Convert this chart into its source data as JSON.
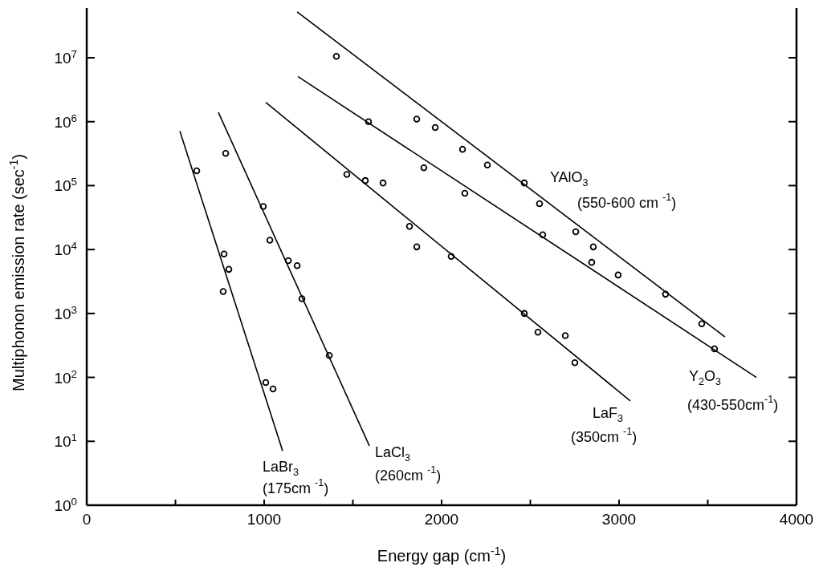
{
  "chart_data": {
    "type": "scatter",
    "xlabel": "Energy gap (cm$^{-1}$)",
    "ylabel": "Multiphonon emission rate (sec$^{-1}$)",
    "log": "y",
    "marker": "circle",
    "xlim": [
      0,
      4000
    ],
    "xticks": [
      0,
      {
        "value": 500,
        "label": null
      },
      1000,
      {
        "value": 1500,
        "label": null
      },
      2000,
      {
        "value": 2500,
        "label": null
      },
      3000,
      {
        "value": 3500,
        "label": null
      },
      4000
    ],
    "ylim": [
      1,
      60000000
    ],
    "yticks": [
      {
        "value": 1,
        "label": "10$^{0}$"
      },
      {
        "value": 10,
        "label": "10$^{1}$"
      },
      {
        "value": 100,
        "label": "10$^{2}$"
      },
      {
        "value": 1000,
        "label": "10$^{3}$"
      },
      {
        "value": 10000,
        "label": "10$^{4}$"
      },
      {
        "value": 100000,
        "label": "10$^{5}$"
      },
      {
        "value": 1000000,
        "label": "10$^{6}$"
      },
      {
        "value": 10000000,
        "label": "10$^{7}$"
      }
    ],
    "series": [
      {
        "color": "#000000",
        "x": [
          1407,
          1860,
          1964,
          2118,
          2258,
          2466,
          2552,
          2756,
          2855,
          2995,
          3262,
          3466
        ],
        "values": [
          10500000,
          1100000,
          810000,
          370000,
          210000,
          110000,
          52000,
          19000,
          11000,
          4000,
          2000,
          690
        ]
      },
      {
        "color": "#000000",
        "x": [
          1588,
          1900,
          2131,
          2570,
          2846,
          3538
        ],
        "values": [
          1000000,
          190000,
          76000,
          17000,
          6300,
          280
        ]
      },
      {
        "color": "#000000",
        "x": [
          1466,
          1570,
          1670,
          1819,
          1860,
          2054,
          2466,
          2543,
          2697,
          2751
        ],
        "values": [
          150000,
          120000,
          110000,
          23000,
          11000,
          7800,
          1000,
          510,
          450,
          170
        ]
      },
      {
        "color": "#000000",
        "x": [
          783,
          995,
          1032,
          1136,
          1186,
          1213,
          1367
        ],
        "values": [
          320000,
          47000,
          14000,
          6700,
          5600,
          1700,
          220
        ]
      },
      {
        "color": "#000000",
        "x": [
          620,
          774,
          801,
          769,
          1009,
          1050
        ],
        "values": [
          170000,
          8500,
          4900,
          2200,
          83,
          66
        ]
      },
      {
        "type": "line",
        "name": "YAlO$_{3}$\n(550-600 cm $^{-1}$)",
        "color": "#000000",
        "marker": "none",
        "x": [
          1186,
          3597
        ],
        "values": [
          52000000,
          430
        ]
      },
      {
        "type": "line",
        "name": "Y$_{2}$O$_{3}$\n(430-550cm$^{-1}$)",
        "color": "#000000",
        "marker": "none",
        "x": [
          1190,
          3774
        ],
        "values": [
          5100000,
          100
        ]
      },
      {
        "type": "line",
        "name": "LaF$_{3}$\n(350cm $^{-1}$)",
        "color": "#000000",
        "marker": "none",
        "x": [
          1009,
          3063
        ],
        "values": [
          2000000,
          43
        ]
      },
      {
        "type": "line",
        "name": "LaCl$_{3}$\n(260cm $^{-1}$)",
        "color": "#000000",
        "marker": "none",
        "x": [
          742,
          1593
        ],
        "values": [
          1400000,
          8.5
        ]
      },
      {
        "type": "line",
        "name": "LaBr$_{3}$\n(175cm $^{-1}$)",
        "color": "#000000",
        "marker": "none",
        "x": [
          525,
          1104
        ],
        "values": [
          710000,
          7.1
        ]
      }
    ]
  }
}
